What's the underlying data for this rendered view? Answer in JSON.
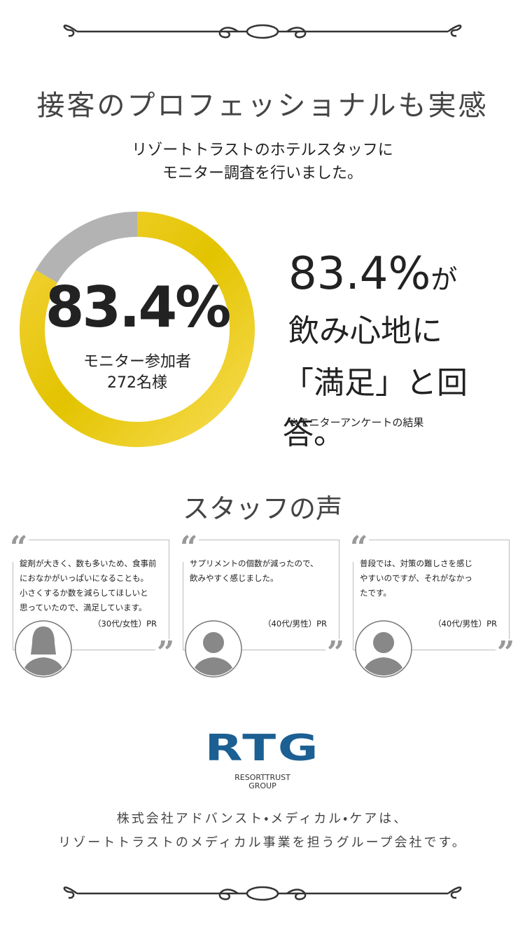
{
  "header": {
    "title": "接客のプロフェッショナルも実感",
    "subtitle_lines": [
      "リゾートトラストのホテルスタッフに",
      "モニター調査を行いました。"
    ]
  },
  "donut": {
    "value": 83.4,
    "value_label": "83.4%",
    "caption_lines": [
      "モニター参加者",
      "272名様"
    ]
  },
  "headline": {
    "lines": [
      [
        "83.4%",
        "が"
      ],
      [
        "飲み心地に"
      ],
      [
        "「満足」と回答。"
      ]
    ],
    "note": "※モニターアンケートの結果"
  },
  "voices": {
    "title": "スタッフの声",
    "cards": [
      {
        "lines": [
          "錠剤が大きく、数も多いため、食事前",
          "におなかがいっぱいになることも。",
          "小さくするか数を減らしてほしいと",
          "思っていたので、満足しています。"
        ],
        "attribution": "（30代/女性）PR"
      },
      {
        "lines": [
          "サプリメントの個数が減ったので、",
          "飲みやすく感じました。"
        ],
        "attribution": "（40代/男性）PR"
      },
      {
        "lines": [
          "普段では、対策の難しさを感じ",
          "やすいのですが、それがなかっ",
          "たです。"
        ],
        "attribution": "（40代/男性）PR"
      }
    ]
  },
  "logo": {
    "mark": "RTG",
    "lines": [
      "RESORTTRUST",
      "GROUP"
    ]
  },
  "footer": {
    "lines": [
      "株式会社アドバンスト・メディカル・ケアは、",
      "リゾートトラストのメディカル事業を担うグループ会社です。"
    ]
  }
}
